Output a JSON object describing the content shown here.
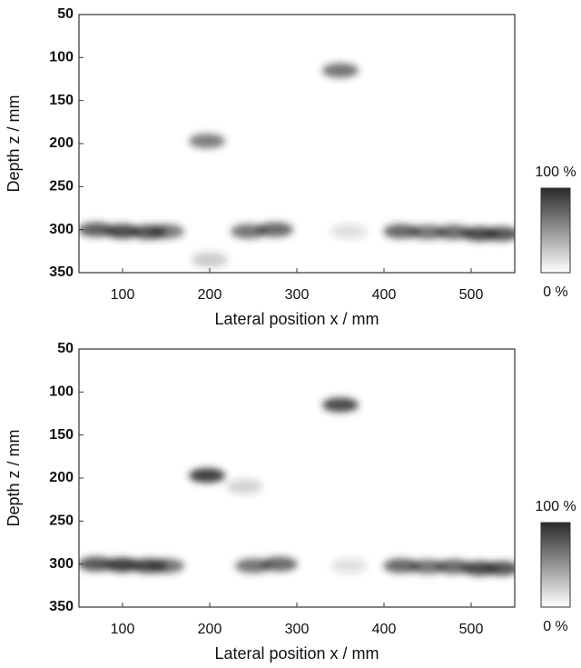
{
  "chart_data": [
    {
      "type": "intensity-map",
      "xlabel": "Lateral position x  /  mm",
      "ylabel": "Depth z  /  mm",
      "xlim": [
        50,
        550
      ],
      "ylim": [
        350,
        50
      ],
      "xticks": [
        100,
        200,
        300,
        400,
        500
      ],
      "yticks": [
        50,
        100,
        150,
        200,
        250,
        300,
        350
      ],
      "color": "#2a2a2a",
      "colorbar_lim": [
        0,
        100
      ],
      "colorbar_ticks": [
        {
          "value": 100,
          "label": "100 %"
        },
        {
          "value": 0,
          "label": "0 %"
        }
      ],
      "points": {
        "x": [
          350,
          197,
          70,
          100,
          130,
          150,
          245,
          275,
          360,
          420,
          450,
          480,
          510,
          535,
          200
        ],
        "z": [
          115,
          197,
          300,
          302,
          303,
          302,
          302,
          300,
          302,
          302,
          303,
          303,
          305,
          305,
          335
        ],
        "intensity": [
          65,
          60,
          75,
          85,
          80,
          60,
          65,
          70,
          15,
          70,
          65,
          70,
          85,
          80,
          25
        ]
      }
    },
    {
      "type": "intensity-map",
      "xlabel": "Lateral position x  /  mm",
      "ylabel": "Depth z  /  mm",
      "xlim": [
        50,
        550
      ],
      "ylim": [
        350,
        50
      ],
      "xticks": [
        100,
        200,
        300,
        400,
        500
      ],
      "yticks": [
        50,
        100,
        150,
        200,
        250,
        300,
        350
      ],
      "color": "#2a2a2a",
      "colorbar_lim": [
        0,
        100
      ],
      "colorbar_ticks": [
        {
          "value": 100,
          "label": "100 %"
        },
        {
          "value": 0,
          "label": "0 %"
        }
      ],
      "points": {
        "x": [
          350,
          197,
          70,
          100,
          130,
          150,
          250,
          280,
          360,
          420,
          450,
          480,
          510,
          535,
          240
        ],
        "z": [
          115,
          197,
          300,
          301,
          302,
          302,
          302,
          300,
          302,
          302,
          303,
          303,
          305,
          305,
          210
        ],
        "intensity": [
          85,
          90,
          80,
          90,
          85,
          65,
          65,
          70,
          15,
          70,
          65,
          70,
          85,
          80,
          20
        ]
      }
    }
  ]
}
